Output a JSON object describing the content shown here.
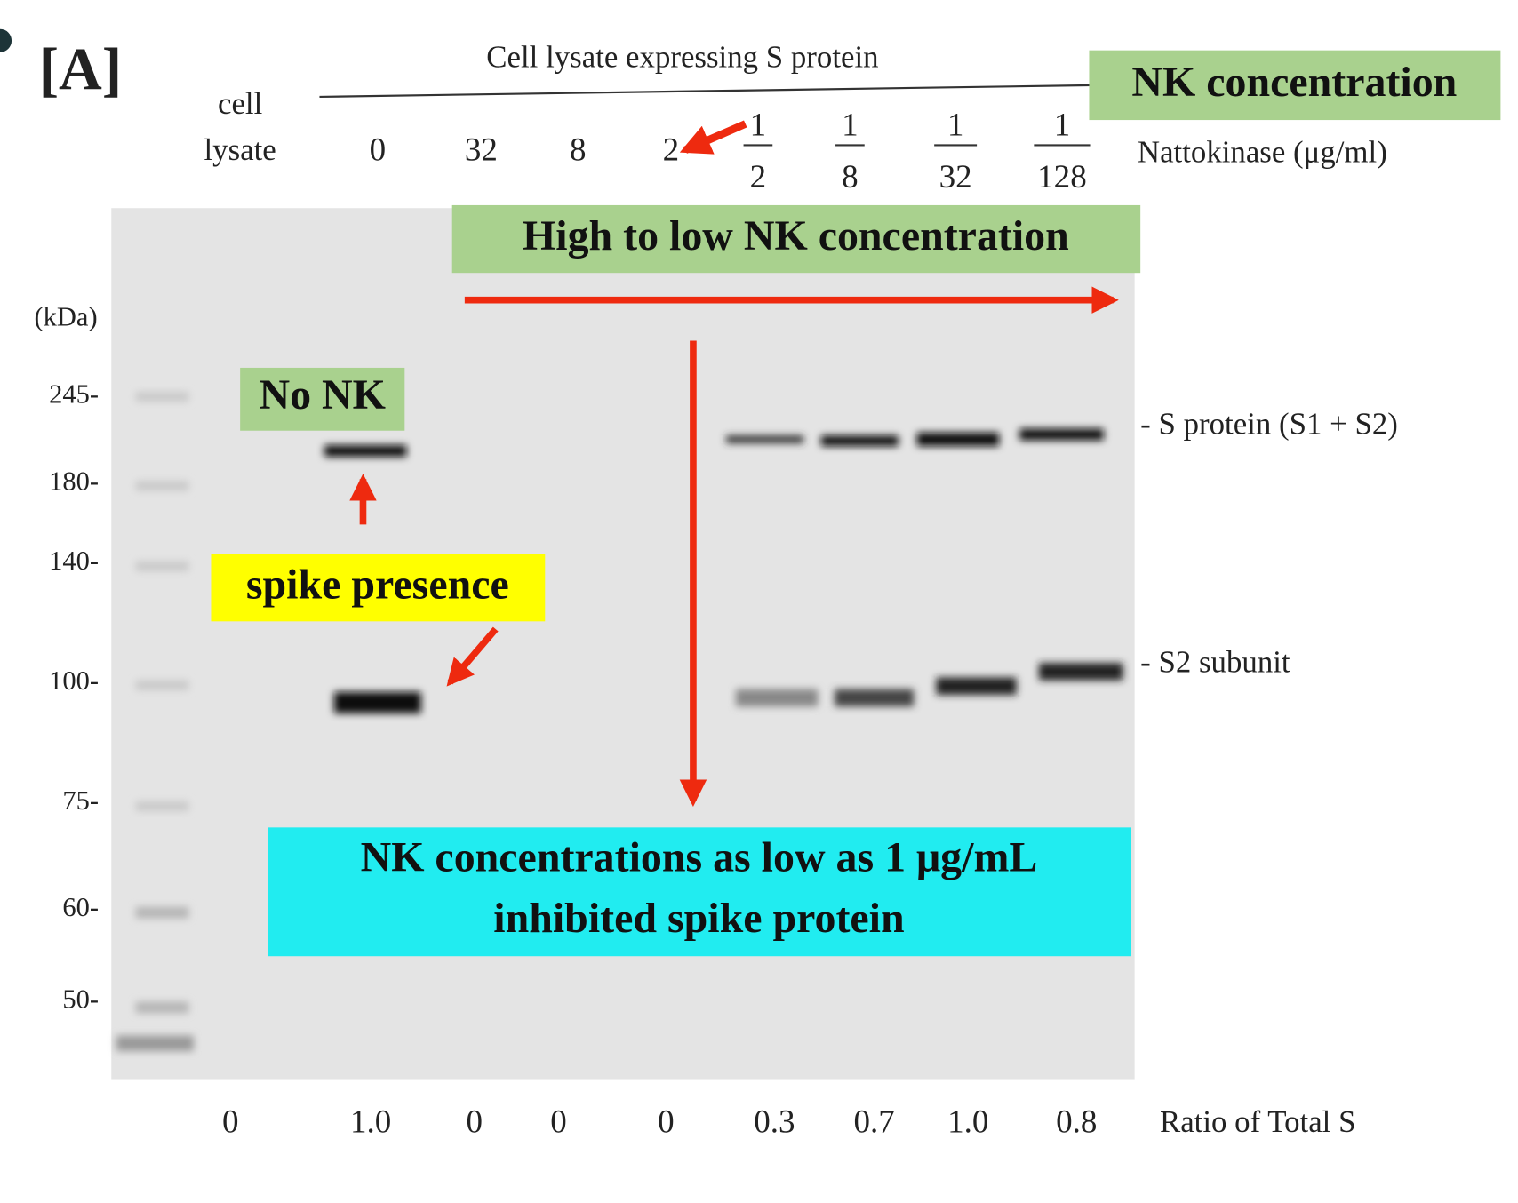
{
  "panel_label": "[A]",
  "header": "Cell lysate expressing S protein",
  "lanes": {
    "control_top": "cell",
    "control_bottom": "lysate",
    "doses": [
      "0",
      "32",
      "8",
      "2"
    ],
    "fractions": [
      {
        "num": "1",
        "den": "2"
      },
      {
        "num": "1",
        "den": "8"
      },
      {
        "num": "1",
        "den": "32"
      },
      {
        "num": "1",
        "den": "128"
      }
    ],
    "unit": "Nattokinase (μg/ml)"
  },
  "annotations": {
    "nk_concentration": "NK concentration",
    "high_to_low": "High to low NK concentration",
    "no_nk": "No NK",
    "spike_presence": "spike presence",
    "conclusion": [
      "NK concentrations as low as 1 μg/mL",
      "inhibited spike protein"
    ]
  },
  "markers": {
    "unit": "(kDa)",
    "labels": [
      "245-",
      "180-",
      "140-",
      "100-",
      "75-",
      "60-",
      "50-"
    ]
  },
  "bands": {
    "s_protein": "- S protein (S1 + S2)",
    "s2": "- S2 subunit"
  },
  "ratio": {
    "values": [
      "0",
      "1.0",
      "0",
      "0",
      "0",
      "0.3",
      "0.7",
      "1.0",
      "0.8"
    ],
    "label": "Ratio of Total S"
  }
}
